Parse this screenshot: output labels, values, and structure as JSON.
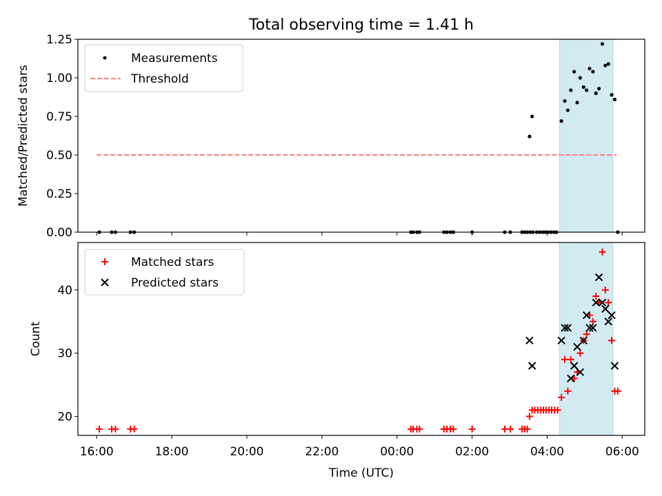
{
  "chart_data": [
    {
      "type": "scatter",
      "title": "Total observing time = 1.41 h",
      "xlabel": "",
      "ylabel": "Matched/Predicted stars",
      "xlim": [
        -0.5,
        14.6
      ],
      "ylim": [
        0.0,
        1.25
      ],
      "yticks": [
        0.0,
        0.25,
        0.5,
        0.75,
        1.0,
        1.25
      ],
      "ytick_labels": [
        "0.00",
        "0.25",
        "0.50",
        "0.75",
        "1.00",
        "1.25"
      ],
      "shaded_x": [
        12.33,
        13.75
      ],
      "legend_position": "upper left",
      "series": [
        {
          "name": "Measurements",
          "kind": "points",
          "color": "#000000",
          "x": [
            0.07,
            0.4,
            0.5,
            0.9,
            1.0,
            8.37,
            8.43,
            8.53,
            8.6,
            9.25,
            9.33,
            9.42,
            9.5,
            10.0,
            10.87,
            11.02,
            11.33,
            11.4,
            11.47,
            11.55,
            11.62,
            11.72,
            11.8,
            11.88,
            11.95,
            12.02,
            12.1,
            12.18,
            12.25,
            11.53,
            11.6,
            12.38,
            12.47,
            12.55,
            12.63,
            12.72,
            12.8,
            12.88,
            12.97,
            13.05,
            13.13,
            13.22,
            13.3,
            13.38,
            13.47,
            13.55,
            13.63,
            13.72,
            13.8,
            13.88
          ],
          "y": [
            0.0,
            0.0,
            0.0,
            0.0,
            0.0,
            0.0,
            0.0,
            0.0,
            0.0,
            0.0,
            0.0,
            0.0,
            0.0,
            0.0,
            0.0,
            0.0,
            0.0,
            0.0,
            0.0,
            0.0,
            0.0,
            0.0,
            0.0,
            0.0,
            0.0,
            0.0,
            0.0,
            0.0,
            0.0,
            0.62,
            0.75,
            0.72,
            0.85,
            0.79,
            0.92,
            1.04,
            0.84,
            1.0,
            0.94,
            0.92,
            1.06,
            1.04,
            0.9,
            0.93,
            1.22,
            1.08,
            1.09,
            0.89,
            0.86,
            0.0
          ]
        },
        {
          "name": "Threshold",
          "kind": "dashed-line",
          "color": "#ff7f7f",
          "x": [
            0.0,
            13.85
          ],
          "y": [
            0.5,
            0.5
          ]
        }
      ]
    },
    {
      "type": "scatter",
      "title": "",
      "xlabel": "Time (UTC)",
      "ylabel": "Count",
      "xlim": [
        -0.5,
        14.6
      ],
      "ylim": [
        17,
        47.5
      ],
      "yticks": [
        20,
        30,
        40
      ],
      "ytick_labels": [
        "20",
        "30",
        "40"
      ],
      "xticks": [
        0,
        2,
        4,
        6,
        8,
        10,
        12,
        14
      ],
      "xtick_labels": [
        "16:00",
        "18:00",
        "20:00",
        "22:00",
        "00:00",
        "02:00",
        "04:00",
        "06:00"
      ],
      "shaded_x": [
        12.33,
        13.75
      ],
      "legend_position": "upper left",
      "series": [
        {
          "name": "Matched stars",
          "marker": "plus",
          "color": "#ff0000",
          "x": [
            0.07,
            0.4,
            0.5,
            0.9,
            1.0,
            8.37,
            8.43,
            8.53,
            8.6,
            9.25,
            9.33,
            9.42,
            9.5,
            10.0,
            10.87,
            11.02,
            11.33,
            11.4,
            11.47,
            11.53,
            11.6,
            11.67,
            11.75,
            11.83,
            11.9,
            11.97,
            12.05,
            12.12,
            12.2,
            12.28,
            12.38,
            12.47,
            12.55,
            12.63,
            12.72,
            12.8,
            12.88,
            12.97,
            13.05,
            13.13,
            13.22,
            13.3,
            13.38,
            13.47,
            13.55,
            13.63,
            13.72,
            13.8,
            13.88
          ],
          "y": [
            18,
            18,
            18,
            18,
            18,
            18,
            18,
            18,
            18,
            18,
            18,
            18,
            18,
            18,
            18,
            18,
            18,
            18,
            18,
            20,
            21,
            21,
            21,
            21,
            21,
            21,
            21,
            21,
            21,
            21,
            23,
            29,
            24,
            29,
            26,
            27,
            30,
            32,
            33,
            36,
            35,
            39,
            38,
            46,
            40,
            38,
            32,
            24,
            24
          ]
        },
        {
          "name": "Predicted stars",
          "marker": "x",
          "color": "#000000",
          "x": [
            11.53,
            11.6,
            12.38,
            12.47,
            12.55,
            12.63,
            12.72,
            12.8,
            12.88,
            12.97,
            13.05,
            13.13,
            13.22,
            13.3,
            13.38,
            13.47,
            13.55,
            13.63,
            13.72,
            13.8
          ],
          "y": [
            32,
            28,
            32,
            34,
            34,
            26,
            28,
            31,
            27,
            32,
            36,
            34,
            34,
            38,
            42,
            38,
            37,
            35,
            36,
            28
          ]
        }
      ]
    }
  ]
}
